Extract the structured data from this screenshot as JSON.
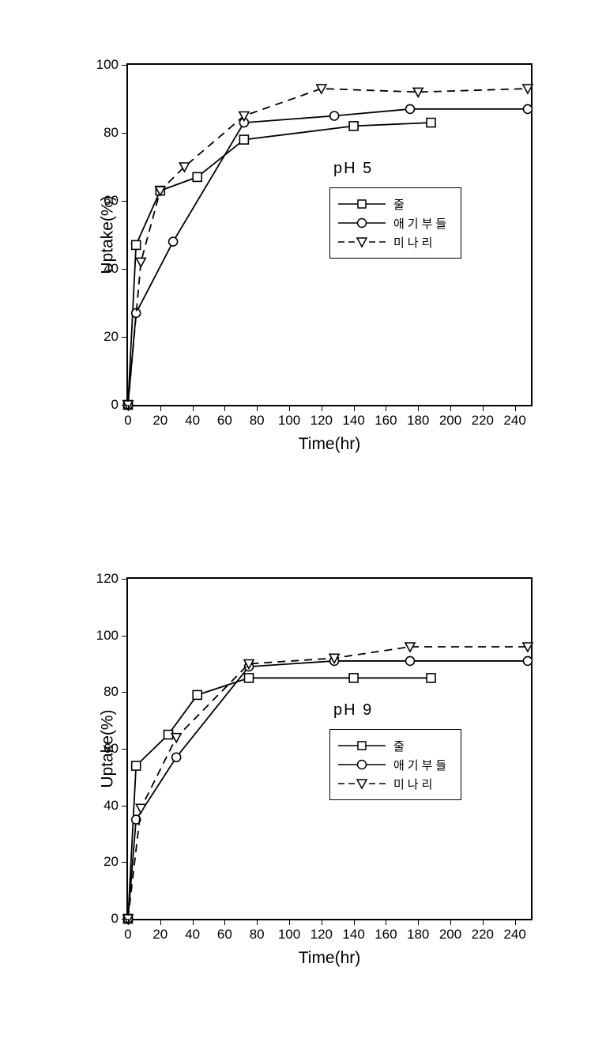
{
  "background_color": "#ffffff",
  "line_color": "#000000",
  "marker_stroke": "#000000",
  "marker_fill": "#ffffff",
  "axis_font_size": 17,
  "title_font_size": 21,
  "legend_font_size": 15,
  "chart_top": {
    "annotation": "pH 5",
    "x_axis_title": "Time(hr)",
    "y_axis_title": "Uptake(%)",
    "xlim": [
      0,
      250
    ],
    "ylim": [
      0,
      100
    ],
    "x_ticks": [
      0,
      20,
      40,
      60,
      80,
      100,
      120,
      140,
      160,
      180,
      200,
      220,
      240
    ],
    "y_ticks": [
      0,
      20,
      40,
      60,
      80,
      100
    ],
    "series": [
      {
        "name": "줄",
        "marker": "square",
        "dash": "solid",
        "x": [
          0,
          5,
          20,
          43,
          72,
          140,
          188
        ],
        "y": [
          0,
          47,
          63,
          67,
          78,
          82,
          83
        ]
      },
      {
        "name": "애기부들",
        "marker": "circle",
        "dash": "solid",
        "x": [
          0,
          5,
          28,
          72,
          128,
          175,
          248
        ],
        "y": [
          0,
          27,
          48,
          83,
          85,
          87,
          87
        ]
      },
      {
        "name": "미나리",
        "marker": "triangle-down",
        "dash": "dashed",
        "x": [
          0,
          8,
          20,
          35,
          72,
          120,
          180,
          248
        ],
        "y": [
          0,
          42,
          63,
          70,
          85,
          93,
          92,
          93
        ]
      }
    ]
  },
  "chart_bottom": {
    "annotation": "pH 9",
    "x_axis_title": "Time(hr)",
    "y_axis_title": "Uptake(%)",
    "xlim": [
      0,
      250
    ],
    "ylim": [
      0,
      120
    ],
    "x_ticks": [
      0,
      20,
      40,
      60,
      80,
      100,
      120,
      140,
      160,
      180,
      200,
      220,
      240
    ],
    "y_ticks": [
      0,
      20,
      40,
      60,
      80,
      100,
      120
    ],
    "series": [
      {
        "name": "줄",
        "marker": "square",
        "dash": "solid",
        "x": [
          0,
          5,
          25,
          43,
          75,
          140,
          188
        ],
        "y": [
          0,
          54,
          65,
          79,
          85,
          85,
          85
        ]
      },
      {
        "name": "애기부들",
        "marker": "circle",
        "dash": "solid",
        "x": [
          0,
          5,
          30,
          75,
          128,
          175,
          248
        ],
        "y": [
          0,
          35,
          57,
          89,
          91,
          91,
          91
        ]
      },
      {
        "name": "미나리",
        "marker": "triangle-down",
        "dash": "dashed",
        "x": [
          0,
          8,
          30,
          75,
          128,
          175,
          248
        ],
        "y": [
          0,
          39,
          64,
          90,
          92,
          96,
          96
        ]
      }
    ]
  },
  "legend_labels": [
    "줄",
    "애기부들",
    "미나리"
  ]
}
